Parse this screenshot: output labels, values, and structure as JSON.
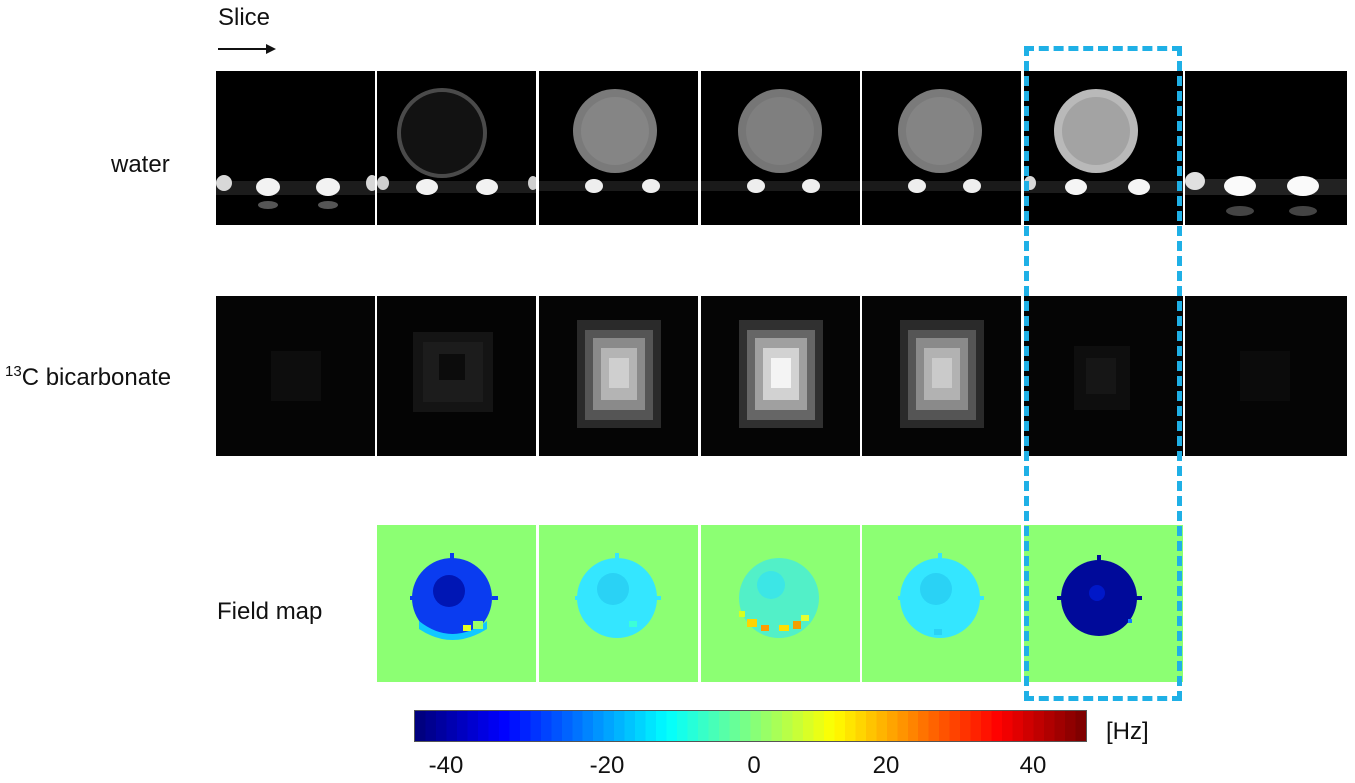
{
  "labels": {
    "slice": "Slice",
    "water": "water",
    "bicarb_sup": "13",
    "bicarb": "C bicarbonate",
    "field_map": "Field map"
  },
  "colorbar": {
    "unit": "[Hz]",
    "ticks": [
      "-40",
      "-20",
      "0",
      "20",
      "40"
    ],
    "min": -50,
    "max": 50,
    "colormap": "jet"
  },
  "colors": {
    "highlight": "#1fb0e6",
    "field_background": "#8cff73",
    "image_background": "#000000"
  },
  "rows": {
    "water": [
      {
        "slice": 1,
        "phantom": "none"
      },
      {
        "slice": 2,
        "phantom": "ring"
      },
      {
        "slice": 3,
        "phantom": "disc"
      },
      {
        "slice": 4,
        "phantom": "disc"
      },
      {
        "slice": 5,
        "phantom": "disc"
      },
      {
        "slice": 6,
        "phantom": "bright-disc"
      },
      {
        "slice": 7,
        "phantom": "none"
      }
    ],
    "bicarbonate": [
      {
        "slice": 1,
        "intensity": 0.03
      },
      {
        "slice": 2,
        "intensity": 0.15
      },
      {
        "slice": 3,
        "intensity": 0.75
      },
      {
        "slice": 4,
        "intensity": 1.0
      },
      {
        "slice": 5,
        "intensity": 0.75
      },
      {
        "slice": 6,
        "intensity": 0.08
      },
      {
        "slice": 7,
        "intensity": 0.03
      }
    ],
    "field_map": [
      {
        "slice": 2,
        "level": "blue"
      },
      {
        "slice": 3,
        "level": "cyan"
      },
      {
        "slice": 4,
        "level": "mixed"
      },
      {
        "slice": 5,
        "level": "cyan"
      },
      {
        "slice": 6,
        "level": "dark-blue"
      }
    ]
  },
  "highlighted_slice": 6
}
